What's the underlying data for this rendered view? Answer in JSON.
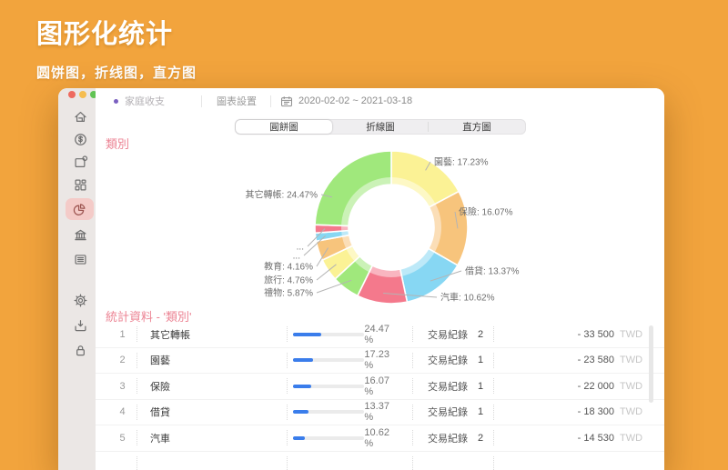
{
  "hero": {
    "title": "图形化统计",
    "subtitle": "圆饼图，折线图，直方图"
  },
  "colors": {
    "background": "#F2A43D",
    "heading_pink": "#EC8494",
    "bar_blue": "#3A7DEB",
    "traffic_close": "#EE6A5F",
    "traffic_minimize": "#F5BD4F",
    "traffic_zoom": "#61C354"
  },
  "window": {
    "toolbar": {
      "account": "家庭收支",
      "settings_label": "圖表設置",
      "calendar_icon": "calendar-icon",
      "date_range": "2020-02-02 ~ 2021-03-18"
    },
    "sidebar": {
      "items": [
        {
          "name": "home",
          "selected": false
        },
        {
          "name": "money-transfer",
          "selected": false
        },
        {
          "name": "note",
          "selected": false
        },
        {
          "name": "categories",
          "selected": false
        },
        {
          "name": "pie-chart",
          "selected": true
        },
        {
          "name": "bank",
          "selected": false
        },
        {
          "name": "list",
          "selected": false
        },
        {
          "name": "settings",
          "selected": false
        },
        {
          "name": "import",
          "selected": false
        },
        {
          "name": "lock",
          "selected": false
        }
      ]
    },
    "tabs": [
      {
        "key": "pie-chart",
        "label": "圓餅圖",
        "selected": true
      },
      {
        "key": "line-chart",
        "label": "折線圖",
        "selected": false
      },
      {
        "key": "histogram",
        "label": "直方圖",
        "selected": false
      }
    ],
    "section_title": "類別",
    "stats_title": "統計資料 - '類別'"
  },
  "chart_data": {
    "type": "pie",
    "subtype": "donut",
    "title": "類別",
    "unit": "%",
    "legend_position": "callout-labels",
    "slices": [
      {
        "label": "園藝",
        "value": 17.23,
        "color": "#FBF295",
        "callout": "園藝: 17.23%"
      },
      {
        "label": "保險",
        "value": 16.07,
        "color": "#F7C47C",
        "callout": "保險: 16.07%"
      },
      {
        "label": "借貸",
        "value": 13.37,
        "color": "#87D7F3",
        "callout": "借貸: 13.37%"
      },
      {
        "label": "汽車",
        "value": 10.62,
        "color": "#F4798C",
        "callout": "汽車: 10.62%"
      },
      {
        "label": "禮物",
        "value": 5.87,
        "color": "#A0E87C",
        "callout": "禮物: 5.87%"
      },
      {
        "label": "旅行",
        "value": 4.76,
        "color": "#FBF295",
        "callout": "旅行: 4.76%"
      },
      {
        "label": "教育",
        "value": 4.16,
        "color": "#F7C47C",
        "callout": "教育: 4.16%"
      },
      {
        "label": "...",
        "value": 1.72,
        "color": "#87D7F3",
        "callout": "..."
      },
      {
        "label": "...",
        "value": 1.73,
        "color": "#F4798C",
        "callout": "..."
      },
      {
        "label": "其它轉帳",
        "value": 24.47,
        "color": "#A0E87C",
        "callout": "其它轉帳: 24.47%"
      }
    ]
  },
  "table": {
    "records_label": "交易紀錄",
    "currency": "TWD",
    "rows": [
      {
        "rank": "1",
        "name": "其它轉帳",
        "pct": 24.47,
        "pct_display": "24.47 %",
        "count": "2",
        "amount": "- 33 500"
      },
      {
        "rank": "2",
        "name": "園藝",
        "pct": 17.23,
        "pct_display": "17.23 %",
        "count": "1",
        "amount": "- 23 580"
      },
      {
        "rank": "3",
        "name": "保險",
        "pct": 16.07,
        "pct_display": "16.07 %",
        "count": "1",
        "amount": "- 22 000"
      },
      {
        "rank": "4",
        "name": "借貸",
        "pct": 13.37,
        "pct_display": "13.37 %",
        "count": "1",
        "amount": "- 18 300"
      },
      {
        "rank": "5",
        "name": "汽車",
        "pct": 10.62,
        "pct_display": "10.62 %",
        "count": "2",
        "amount": "- 14 530"
      }
    ]
  }
}
